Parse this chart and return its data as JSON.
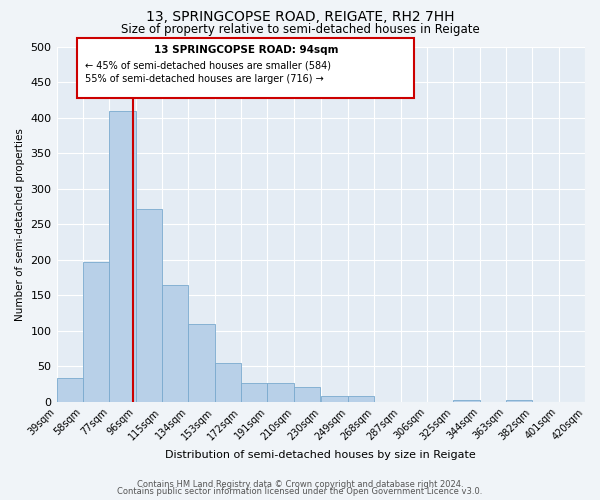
{
  "title": "13, SPRINGCOPSE ROAD, REIGATE, RH2 7HH",
  "subtitle": "Size of property relative to semi-detached houses in Reigate",
  "xlabel": "Distribution of semi-detached houses by size in Reigate",
  "ylabel": "Number of semi-detached properties",
  "bar_values": [
    33,
    197,
    409,
    271,
    165,
    110,
    55,
    26,
    26,
    21,
    8,
    8,
    0,
    0,
    0,
    3,
    0,
    3,
    0,
    0
  ],
  "bin_labels": [
    "39sqm",
    "58sqm",
    "77sqm",
    "96sqm",
    "115sqm",
    "134sqm",
    "153sqm",
    "172sqm",
    "191sqm",
    "210sqm",
    "230sqm",
    "249sqm",
    "268sqm",
    "287sqm",
    "306sqm",
    "325sqm",
    "344sqm",
    "363sqm",
    "382sqm",
    "401sqm",
    "420sqm"
  ],
  "bin_edges": [
    39,
    58,
    77,
    96,
    115,
    134,
    153,
    172,
    191,
    210,
    230,
    249,
    268,
    287,
    306,
    325,
    344,
    363,
    382,
    401,
    420
  ],
  "bar_color": "#b8d0e8",
  "bar_edge_color": "#7aaace",
  "property_value": 94,
  "property_line_color": "#cc0000",
  "annotation_text_line1": "13 SPRINGCOPSE ROAD: 94sqm",
  "annotation_text_line2": "← 45% of semi-detached houses are smaller (584)",
  "annotation_text_line3": "55% of semi-detached houses are larger (716) →",
  "annotation_box_color": "#cc0000",
  "ylim": [
    0,
    500
  ],
  "yticks": [
    0,
    50,
    100,
    150,
    200,
    250,
    300,
    350,
    400,
    450,
    500
  ],
  "footer_line1": "Contains HM Land Registry data © Crown copyright and database right 2024.",
  "footer_line2": "Contains public sector information licensed under the Open Government Licence v3.0.",
  "background_color": "#f0f4f8",
  "plot_background_color": "#e4ecf4"
}
